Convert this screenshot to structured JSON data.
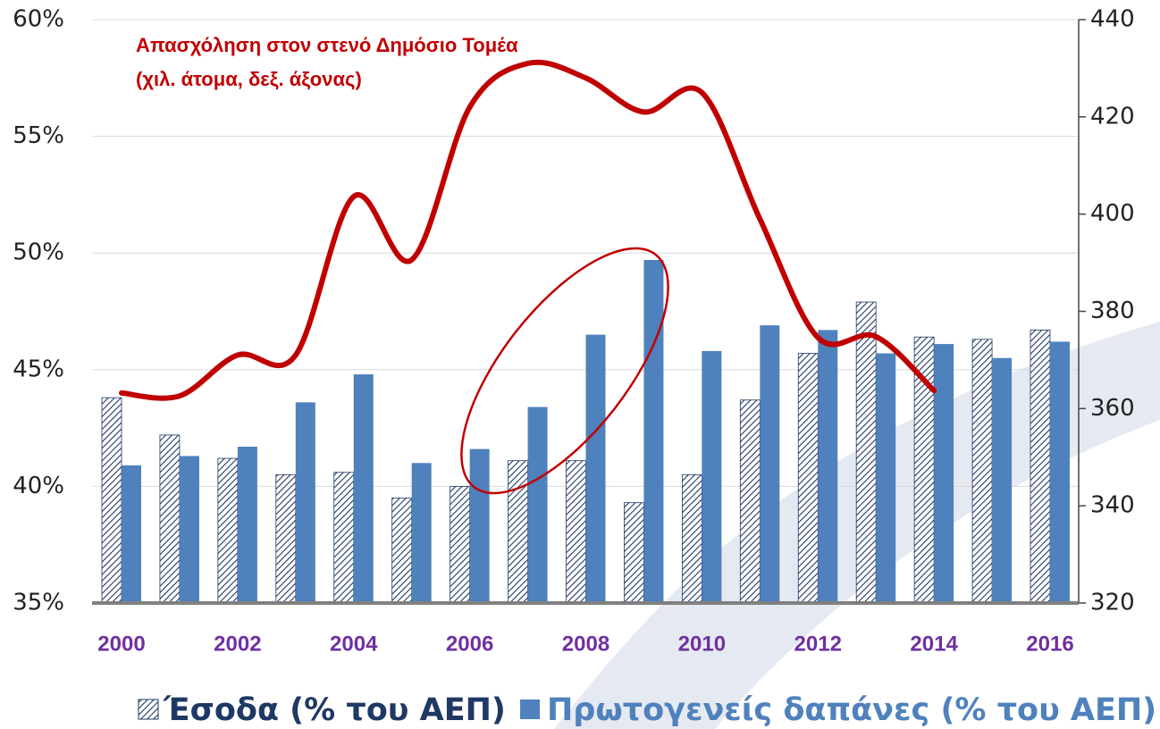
{
  "chart_data": {
    "type": "bar",
    "categories": [
      "2000",
      null,
      "2002",
      null,
      "2004",
      null,
      "2006",
      null,
      "2008",
      null,
      "2010",
      null,
      "2012",
      null,
      "2014",
      null,
      "2016"
    ],
    "series": [
      {
        "name": "Έσοδα (% του ΑΕΠ)",
        "color": "#1f3864",
        "hatch": true,
        "values": [
          43.8,
          42.2,
          41.2,
          40.5,
          40.6,
          39.5,
          40.0,
          41.1,
          41.1,
          39.3,
          40.5,
          43.7,
          45.7,
          47.9,
          46.4,
          46.3,
          46.7
        ]
      },
      {
        "name": "Πρωτογενείς δαπάνες (% του ΑΕΠ)",
        "color": "#4f81bd",
        "values": [
          40.9,
          41.3,
          41.7,
          43.6,
          44.8,
          41.0,
          41.6,
          43.4,
          46.5,
          49.7,
          45.8,
          46.9,
          46.7,
          45.7,
          46.1,
          45.5,
          46.2
        ]
      },
      {
        "name": "Απασχόληση στον στενό Δημόσιο Τομέα",
        "color": "#c00000",
        "type": "line",
        "axis": "y2",
        "values": [
          363.2,
          362.6,
          371,
          371,
          403.6,
          390.6,
          422,
          431,
          428,
          421,
          425,
          399,
          374.6,
          374.8,
          363.7,
          null,
          null
        ]
      }
    ],
    "annotation": "(χιλ. άτομα, δεξ. άξονας)",
    "ylim": [
      35,
      60
    ],
    "yticks": [
      {
        "value": 35,
        "label": "35%"
      },
      {
        "value": 40,
        "label": "40%"
      },
      {
        "value": 45,
        "label": "45%"
      },
      {
        "value": 50,
        "label": "50%"
      },
      {
        "value": 55,
        "label": "55%"
      },
      {
        "value": 60,
        "label": "60%"
      }
    ],
    "y2lim": [
      320,
      440
    ],
    "y2ticks": [
      320,
      340,
      360,
      380,
      400,
      420,
      440
    ],
    "grid": true,
    "legend": "bottom"
  }
}
